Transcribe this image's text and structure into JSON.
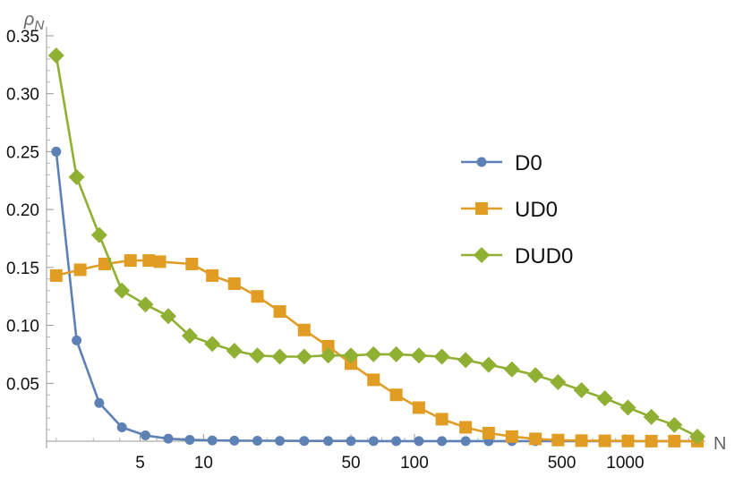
{
  "chart_data": {
    "type": "line",
    "x_scale": "log",
    "x_ticks": [
      5,
      10,
      50,
      100,
      500,
      1000
    ],
    "y_ticks": [
      0.05,
      0.1,
      0.15,
      0.2,
      0.25,
      0.3,
      0.35
    ],
    "y_tick_labels": [
      "0.05",
      "0.10",
      "0.15",
      "0.20",
      "0.25",
      "0.30",
      "0.35"
    ],
    "xlim": [
      1.8,
      2400
    ],
    "ylim": [
      0,
      0.35
    ],
    "xlabel": "N",
    "ylabel": "ρ_N",
    "legend_position": "right-center",
    "grid": false,
    "series": [
      {
        "name": "D0",
        "color": "#5e81b5",
        "marker": "circle",
        "x": [
          2,
          2.5,
          3.2,
          4.1,
          5.3,
          6.8,
          8.6,
          11,
          14,
          18,
          23,
          30,
          39,
          50,
          64,
          82,
          105,
          135,
          175,
          225,
          290,
          375,
          480,
          620,
          800,
          1030,
          1330,
          1710,
          2200
        ],
        "values": [
          0.25,
          0.087,
          0.033,
          0.012,
          0.005,
          0.0022,
          0.0012,
          0.0007,
          0.0005,
          0.0004,
          0.0003,
          0.0002,
          0.0002,
          0.0002,
          0.0001,
          0.0001,
          0.0001,
          0.0001,
          0.0001,
          0.0001,
          0.0001,
          0.0001,
          0.0001,
          0.0001,
          0.0001,
          0.0001,
          0.0001,
          0.0001,
          0.0001
        ]
      },
      {
        "name": "UD0",
        "color": "#e19c24",
        "marker": "square",
        "x": [
          2,
          2.6,
          3.4,
          4.5,
          5.5,
          6.2,
          8.8,
          11,
          14,
          18,
          23,
          30,
          39,
          50,
          64,
          82,
          105,
          135,
          175,
          225,
          290,
          375,
          480,
          620,
          800,
          1030,
          1330,
          1710,
          2200
        ],
        "values": [
          0.143,
          0.148,
          0.153,
          0.156,
          0.156,
          0.155,
          0.153,
          0.143,
          0.136,
          0.125,
          0.112,
          0.096,
          0.082,
          0.067,
          0.053,
          0.04,
          0.029,
          0.019,
          0.012,
          0.007,
          0.004,
          0.002,
          0.001,
          0.0005,
          0.0003,
          0.0002,
          0.0001,
          0.0001,
          0.0001
        ]
      },
      {
        "name": "DUD0",
        "color": "#8fb032",
        "marker": "diamond",
        "x": [
          2,
          2.5,
          3.2,
          4.1,
          5.3,
          6.8,
          8.6,
          11,
          14,
          18,
          23,
          30,
          39,
          50,
          64,
          82,
          105,
          135,
          175,
          225,
          290,
          375,
          480,
          620,
          800,
          1030,
          1330,
          1710,
          2200
        ],
        "values": [
          0.333,
          0.228,
          0.178,
          0.13,
          0.118,
          0.108,
          0.091,
          0.084,
          0.078,
          0.074,
          0.073,
          0.073,
          0.074,
          0.074,
          0.075,
          0.075,
          0.074,
          0.073,
          0.07,
          0.066,
          0.062,
          0.057,
          0.051,
          0.044,
          0.037,
          0.029,
          0.021,
          0.014,
          0.004
        ]
      }
    ]
  }
}
